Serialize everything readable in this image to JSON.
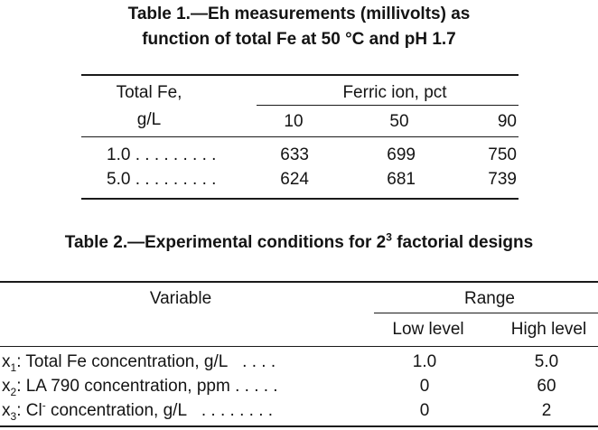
{
  "table1": {
    "title_line1": "Table 1.—Eh measurements (millivolts) as",
    "title_line2": "function of total Fe at 50 °C and pH 1.7",
    "header_col1_line1": "Total Fe,",
    "header_col1_line2": "g/L",
    "header_group": "Ferric ion, pct",
    "sub_headers": [
      "10",
      "50",
      "90"
    ],
    "rows": [
      {
        "label": "1.0",
        "leader": ". . . . . . . . .",
        "values": [
          "633",
          "699",
          "750"
        ]
      },
      {
        "label": "5.0",
        "leader": ". . . . . . . . .",
        "values": [
          "624",
          "681",
          "739"
        ]
      }
    ]
  },
  "table2": {
    "title_prefix": "Table 2.—Experimental conditions for 2",
    "title_sup": "3",
    "title_suffix": " factorial designs",
    "header_variable": "Variable",
    "header_range": "Range",
    "header_low": "Low level",
    "header_high": "High level",
    "rows": [
      {
        "var": "x",
        "sub": "1",
        "sup": "",
        "text": ": Total Fe concentration, g/L",
        "leader": ". . . .",
        "low": "1.0",
        "high": "5.0"
      },
      {
        "var": "x",
        "sub": "2",
        "sup": "",
        "text": ": LA 790 concentration, ppm",
        "leader": ". . . . .",
        "low": "0",
        "high": "60"
      },
      {
        "var": "x",
        "sub": "3",
        "sup": "-",
        "text_pre": ": Cl",
        "text": " concentration, g/L",
        "leader": ". . . . . . . .",
        "low": "0",
        "high": "2"
      }
    ]
  }
}
